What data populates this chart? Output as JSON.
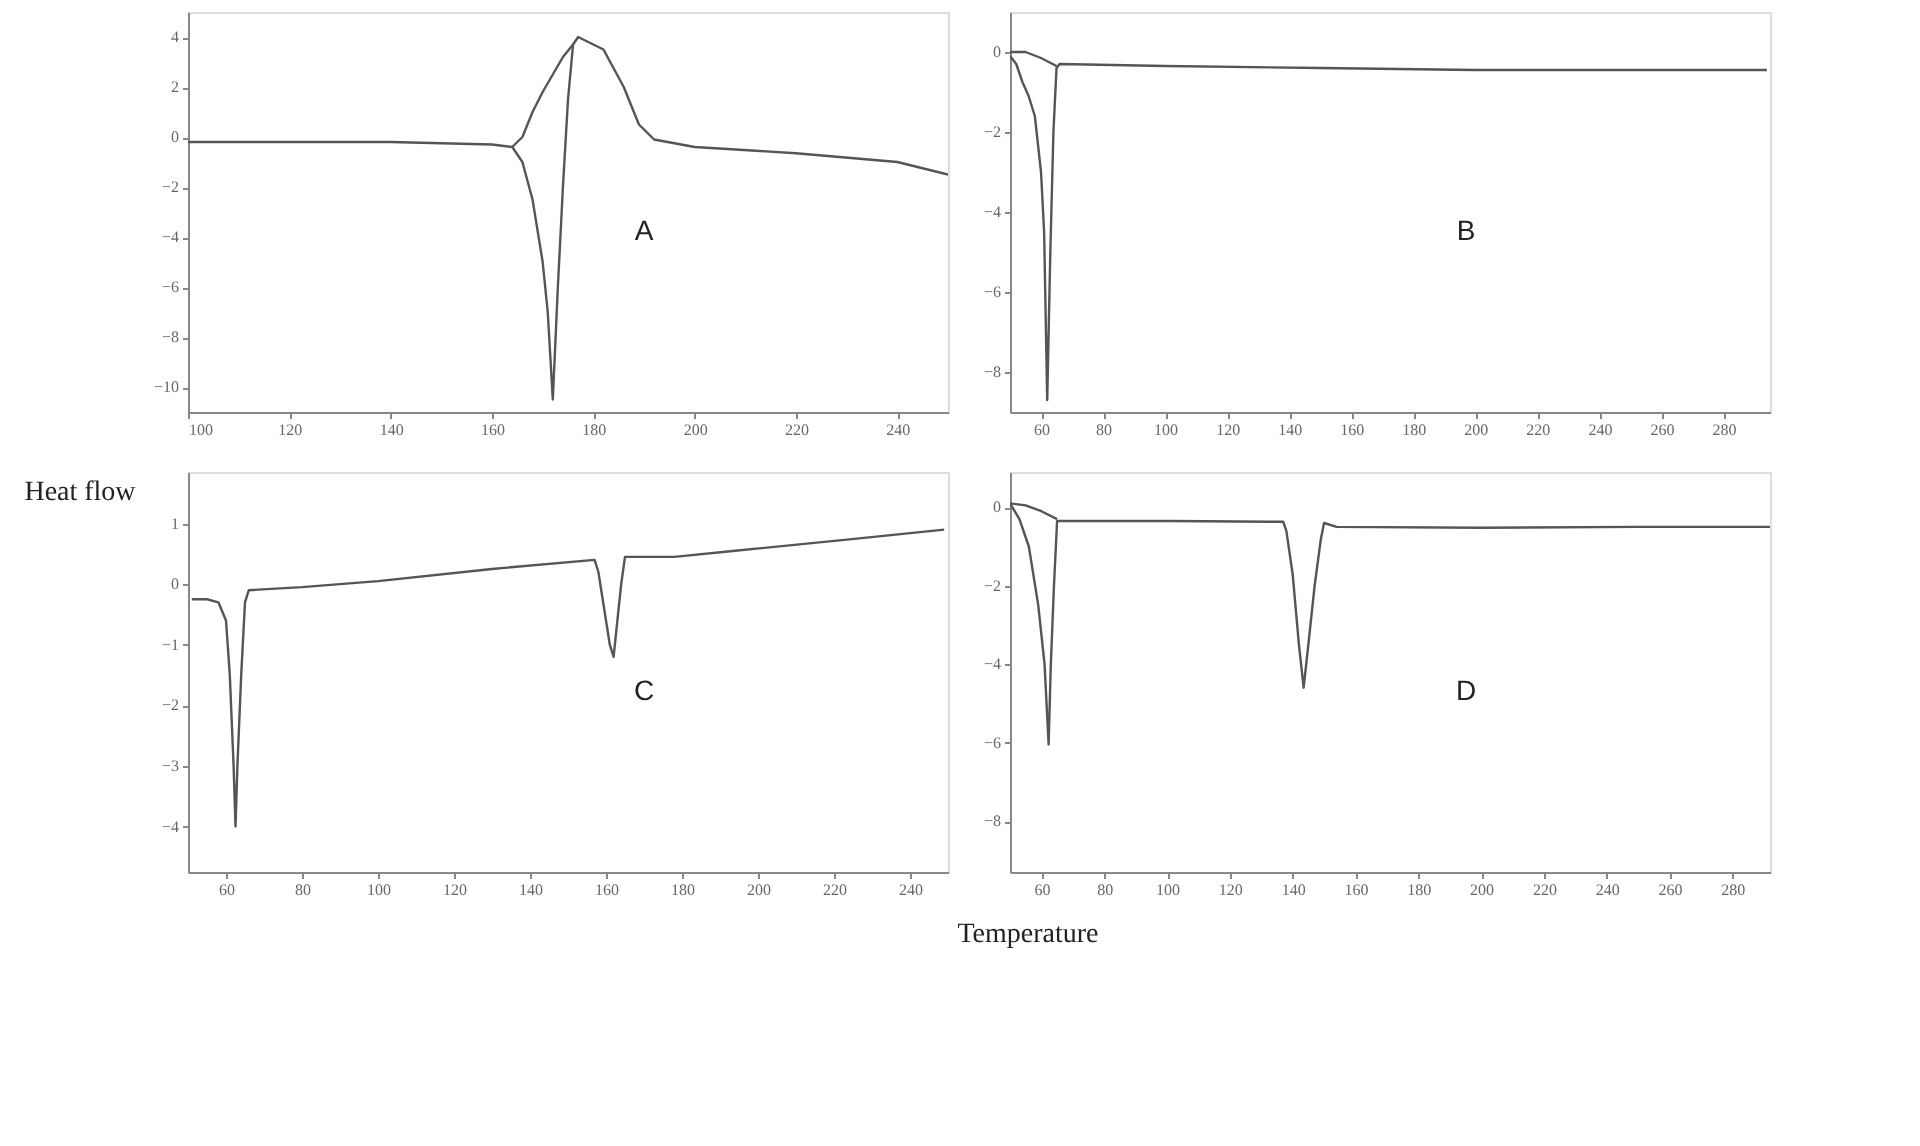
{
  "chart_data": [
    {
      "type": "line",
      "ylabel": "Heat flow",
      "xlabel": "Temperature",
      "annotations": [
        "A"
      ],
      "xlim": [
        100,
        250
      ],
      "xticks": [
        100,
        120,
        140,
        160,
        180,
        200,
        220,
        240
      ],
      "ylim": [
        -11,
        5
      ],
      "yticks": [
        4,
        2,
        0,
        -2,
        -4,
        -6,
        -8,
        -10
      ],
      "grid": false,
      "series": [
        {
          "color": "#555555",
          "x": [
            100,
            120,
            140,
            160,
            164,
            166,
            168,
            170,
            171,
            172,
            173,
            174,
            175,
            176,
            177,
            182,
            186,
            189,
            192,
            200,
            220,
            240,
            250
          ],
          "values": [
            -0.2,
            -0.2,
            -0.2,
            -0.3,
            -0.4,
            -1,
            -2.5,
            -5,
            -7,
            -10.5,
            -6,
            -2,
            1.5,
            3.7,
            4,
            3.5,
            2,
            0.5,
            -0.1,
            -0.4,
            -0.65,
            -1,
            -1.5
          ]
        },
        {
          "color": "#555555",
          "x": [
            164,
            166,
            168,
            170,
            172,
            174,
            176
          ],
          "values": [
            -0.4,
            0,
            1,
            1.8,
            2.5,
            3.2,
            3.7
          ]
        }
      ]
    },
    {
      "type": "line",
      "annotations": [
        "B"
      ],
      "xlim": [
        50,
        295
      ],
      "xticks": [
        60,
        80,
        100,
        120,
        140,
        160,
        180,
        200,
        220,
        240,
        260,
        280
      ],
      "ylim": [
        -9,
        1
      ],
      "yticks": [
        0,
        -2,
        -4,
        -6,
        -8
      ],
      "grid": false,
      "series": [
        {
          "color": "#555555",
          "x": [
            50,
            52,
            54,
            56,
            58,
            60,
            61,
            62,
            63,
            64,
            65,
            66,
            100,
            150,
            200,
            250,
            294
          ],
          "values": [
            -0.1,
            -0.3,
            -0.75,
            -1.1,
            -1.6,
            -3,
            -4.5,
            -8.7,
            -5,
            -2,
            -0.4,
            -0.3,
            -0.35,
            -0.4,
            -0.45,
            -0.45,
            -0.45
          ]
        },
        {
          "color": "#555555",
          "x": [
            50,
            55,
            60,
            65
          ],
          "values": [
            0,
            0,
            -0.15,
            -0.35
          ]
        }
      ]
    },
    {
      "type": "line",
      "annotations": [
        "C"
      ],
      "xlim": [
        50,
        250
      ],
      "xticks": [
        60,
        80,
        100,
        120,
        140,
        160,
        180,
        200,
        220,
        240
      ],
      "ylim": [
        -4.75,
        1.85
      ],
      "yticks": [
        1,
        0,
        -1,
        -2,
        -3,
        -4
      ],
      "grid": false,
      "series": [
        {
          "color": "#555555",
          "x": [
            51,
            55,
            58,
            60,
            61,
            62,
            62.5,
            63,
            64,
            65,
            66,
            80,
            100,
            130,
            157,
            158,
            159,
            160,
            161,
            162,
            163,
            164,
            165,
            178,
            194,
            226,
            249
          ],
          "values": [
            -0.25,
            -0.25,
            -0.3,
            -0.6,
            -1.5,
            -3,
            -4,
            -3,
            -1.5,
            -0.3,
            -0.1,
            -0.05,
            0.05,
            0.25,
            0.4,
            0.2,
            -0.2,
            -0.6,
            -1.0,
            -1.2,
            -0.6,
            0.0,
            0.45,
            0.45,
            0.55,
            0.75,
            0.9
          ]
        }
      ]
    },
    {
      "type": "line",
      "annotations": [
        "D"
      ],
      "xlim": [
        50,
        292
      ],
      "xticks": [
        60,
        80,
        100,
        120,
        140,
        160,
        180,
        200,
        220,
        240,
        260,
        280
      ],
      "ylim": [
        -9.3,
        0.9
      ],
      "yticks": [
        0,
        -2,
        -4,
        -6,
        -8
      ],
      "grid": false,
      "series": [
        {
          "color": "#555555",
          "x": [
            50,
            53,
            56,
            59,
            61,
            62.3,
            63,
            64,
            65,
            80,
            101,
            137,
            138,
            140,
            142,
            143.5,
            145,
            147,
            149,
            150,
            154,
            200,
            250,
            292
          ],
          "values": [
            0.1,
            -0.3,
            -1,
            -2.5,
            -4,
            -6.05,
            -4,
            -2,
            -0.35,
            -0.35,
            -0.35,
            -0.37,
            -0.6,
            -1.7,
            -3.5,
            -4.6,
            -3.5,
            -2,
            -0.8,
            -0.4,
            -0.5,
            -0.52,
            -0.5,
            -0.5
          ]
        },
        {
          "color": "#555555",
          "x": [
            50,
            55,
            60,
            65
          ],
          "values": [
            0.1,
            0.05,
            -0.1,
            -0.3
          ]
        }
      ]
    }
  ]
}
